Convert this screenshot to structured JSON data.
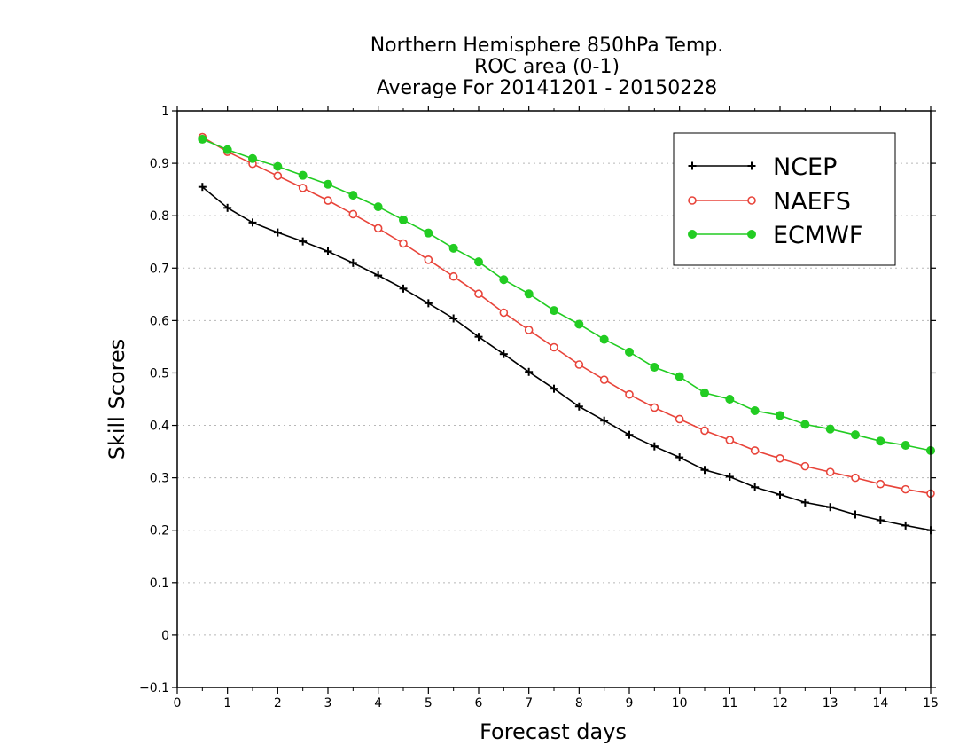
{
  "chart_data": {
    "type": "line",
    "title_lines": [
      "Northern Hemisphere 850hPa Temp.",
      "ROC area (0-1)",
      "Average For 20141201 - 20150228"
    ],
    "xlabel": "Forecast days",
    "ylabel": "Skill Scores",
    "xlim": [
      0,
      15
    ],
    "ylim": [
      -0.1,
      1
    ],
    "xticks": [
      "0",
      "1",
      "2",
      "3",
      "4",
      "5",
      "6",
      "7",
      "8",
      "9",
      "10",
      "11",
      "12",
      "13",
      "14",
      "15"
    ],
    "yticks": [
      "−0.1",
      "0",
      "0.1",
      "0.2",
      "0.3",
      "0.4",
      "0.5",
      "0.6",
      "0.7",
      "0.8",
      "0.9",
      "1"
    ],
    "grid": "horizontal dotted",
    "legend_position": "top-right",
    "x": [
      0.5,
      1,
      1.5,
      2,
      2.5,
      3,
      3.5,
      4,
      4.5,
      5,
      5.5,
      6,
      6.5,
      7,
      7.5,
      8,
      8.5,
      9,
      9.5,
      10,
      10.5,
      11,
      11.5,
      12,
      12.5,
      13,
      13.5,
      14,
      14.5,
      15
    ],
    "series": [
      {
        "name": "NCEP",
        "color": "#000000",
        "marker": "plus",
        "values": [
          0.855,
          0.815,
          0.787,
          0.768,
          0.751,
          0.732,
          0.71,
          0.686,
          0.661,
          0.633,
          0.604,
          0.569,
          0.536,
          0.502,
          0.47,
          0.436,
          0.409,
          0.382,
          0.36,
          0.339,
          0.315,
          0.302,
          0.282,
          0.268,
          0.253,
          0.244,
          0.23,
          0.219,
          0.209,
          0.2
        ]
      },
      {
        "name": "NAEFS",
        "color": "#e8443a",
        "marker": "open-circle",
        "values": [
          0.95,
          0.922,
          0.899,
          0.876,
          0.853,
          0.829,
          0.803,
          0.776,
          0.747,
          0.716,
          0.684,
          0.651,
          0.615,
          0.582,
          0.549,
          0.516,
          0.487,
          0.459,
          0.434,
          0.412,
          0.39,
          0.372,
          0.352,
          0.337,
          0.322,
          0.311,
          0.3,
          0.288,
          0.278,
          0.27
        ]
      },
      {
        "name": "ECMWF",
        "color": "#22cc22",
        "marker": "filled-circle",
        "values": [
          0.946,
          0.926,
          0.909,
          0.894,
          0.877,
          0.86,
          0.839,
          0.817,
          0.792,
          0.767,
          0.738,
          0.712,
          0.678,
          0.651,
          0.619,
          0.593,
          0.564,
          0.54,
          0.511,
          0.493,
          0.462,
          0.45,
          0.428,
          0.419,
          0.402,
          0.393,
          0.382,
          0.37,
          0.362,
          0.352
        ]
      }
    ]
  }
}
